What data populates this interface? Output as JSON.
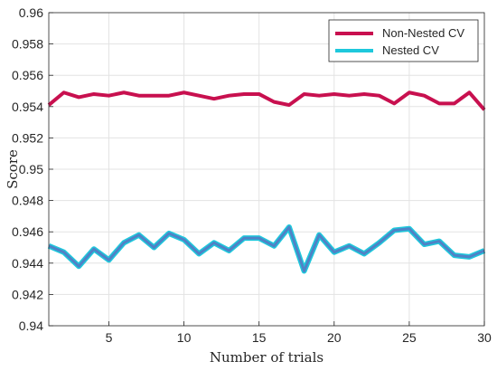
{
  "chart_data": {
    "type": "line",
    "xlabel": "Number of trials",
    "ylabel": "Score",
    "xlim": [
      1,
      30
    ],
    "ylim": [
      0.94,
      0.96
    ],
    "xticks": [
      5,
      10,
      15,
      20,
      25,
      30
    ],
    "xtick_labels": [
      "5",
      "10",
      "15",
      "20",
      "25",
      "30"
    ],
    "yticks": [
      0.94,
      0.942,
      0.944,
      0.946,
      0.948,
      0.95,
      0.952,
      0.954,
      0.956,
      0.958,
      0.96
    ],
    "ytick_labels": [
      "0.94",
      "0.942",
      "0.944",
      "0.946",
      "0.948",
      "0.95",
      "0.952",
      "0.954",
      "0.956",
      "0.958",
      "0.96"
    ],
    "grid": true,
    "legend_position": "top-right",
    "x": [
      1,
      2,
      3,
      4,
      5,
      6,
      7,
      8,
      9,
      10,
      11,
      12,
      13,
      14,
      15,
      16,
      17,
      18,
      19,
      20,
      21,
      22,
      23,
      24,
      25,
      26,
      27,
      28,
      29,
      30
    ],
    "series": [
      {
        "name": "Non-Nested CV",
        "color": "#c8104f",
        "values": [
          0.9541,
          0.9549,
          0.9546,
          0.9548,
          0.9547,
          0.9549,
          0.9547,
          0.9547,
          0.9547,
          0.9549,
          0.9547,
          0.9545,
          0.9547,
          0.9548,
          0.9548,
          0.9543,
          0.9541,
          0.9548,
          0.9547,
          0.9548,
          0.9547,
          0.9548,
          0.9547,
          0.9542,
          0.9549,
          0.9547,
          0.9542,
          0.9542,
          0.9549,
          0.9538
        ]
      },
      {
        "name": "Nested CV",
        "color": "#1ec8dc",
        "inner_color": "#4f82c6",
        "values": [
          0.9451,
          0.9447,
          0.9438,
          0.9449,
          0.9442,
          0.9453,
          0.9458,
          0.945,
          0.9459,
          0.9455,
          0.9446,
          0.9453,
          0.9448,
          0.9456,
          0.9456,
          0.9451,
          0.9463,
          0.9435,
          0.9458,
          0.9447,
          0.9451,
          0.9446,
          0.9453,
          0.9461,
          0.9462,
          0.9452,
          0.9454,
          0.9445,
          0.9444,
          0.9448
        ]
      }
    ]
  }
}
